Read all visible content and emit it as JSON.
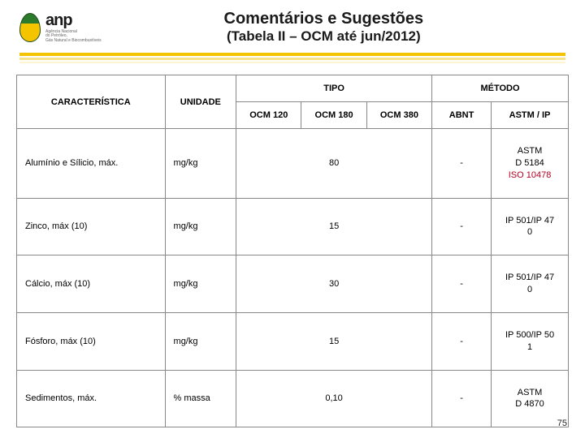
{
  "logo": {
    "brand": "anp",
    "subtitle_line1": "Agência Nacional",
    "subtitle_line2": "do Petróleo,",
    "subtitle_line3": "Gás Natural e Biocombustíveis"
  },
  "title": {
    "main": "Comentários e Sugestões",
    "sub": "(Tabela II – OCM até jun/2012)"
  },
  "table": {
    "columns": {
      "caracteristica": "CARACTERÍSTICA",
      "unidade": "UNIDADE",
      "tipo": "TIPO",
      "metodo": "MÉTODO",
      "ocm120": "OCM 120",
      "ocm180": "OCM 180",
      "ocm380": "OCM 380",
      "abnt": "ABNT",
      "astm_ip": "ASTM / IP"
    },
    "rows": [
      {
        "car": "Alumínio e Sílicio, máx.",
        "uni": "mg/kg",
        "tipo_span": "80",
        "abnt": "-",
        "astm_line1": "ASTM",
        "astm_line2": "D 5184",
        "astm_line3": "ISO 10478"
      },
      {
        "car": "Zinco, máx (10)",
        "uni": "mg/kg",
        "tipo_span": "15",
        "abnt": "-",
        "astm_line1": "IP 501/IP 47",
        "astm_line2": "0",
        "astm_line3": ""
      },
      {
        "car": "Cálcio, máx (10)",
        "uni": "mg/kg",
        "tipo_span": "30",
        "abnt": "-",
        "astm_line1": "IP 501/IP 47",
        "astm_line2": "0",
        "astm_line3": ""
      },
      {
        "car": "Fósforo, máx (10)",
        "uni": "mg/kg",
        "tipo_span": "15",
        "abnt": "-",
        "astm_line1": "IP 500/IP 50",
        "astm_line2": "1",
        "astm_line3": ""
      },
      {
        "car": "Sedimentos, máx.",
        "uni": "% massa",
        "tipo_span": "0,10",
        "abnt": "-",
        "astm_line1": "ASTM",
        "astm_line2": "D 4870",
        "astm_line3": ""
      }
    ]
  },
  "page_number": "75",
  "colors": {
    "accent_yellow": "#f5c400",
    "iso_red": "#b00020",
    "border": "#888888"
  }
}
